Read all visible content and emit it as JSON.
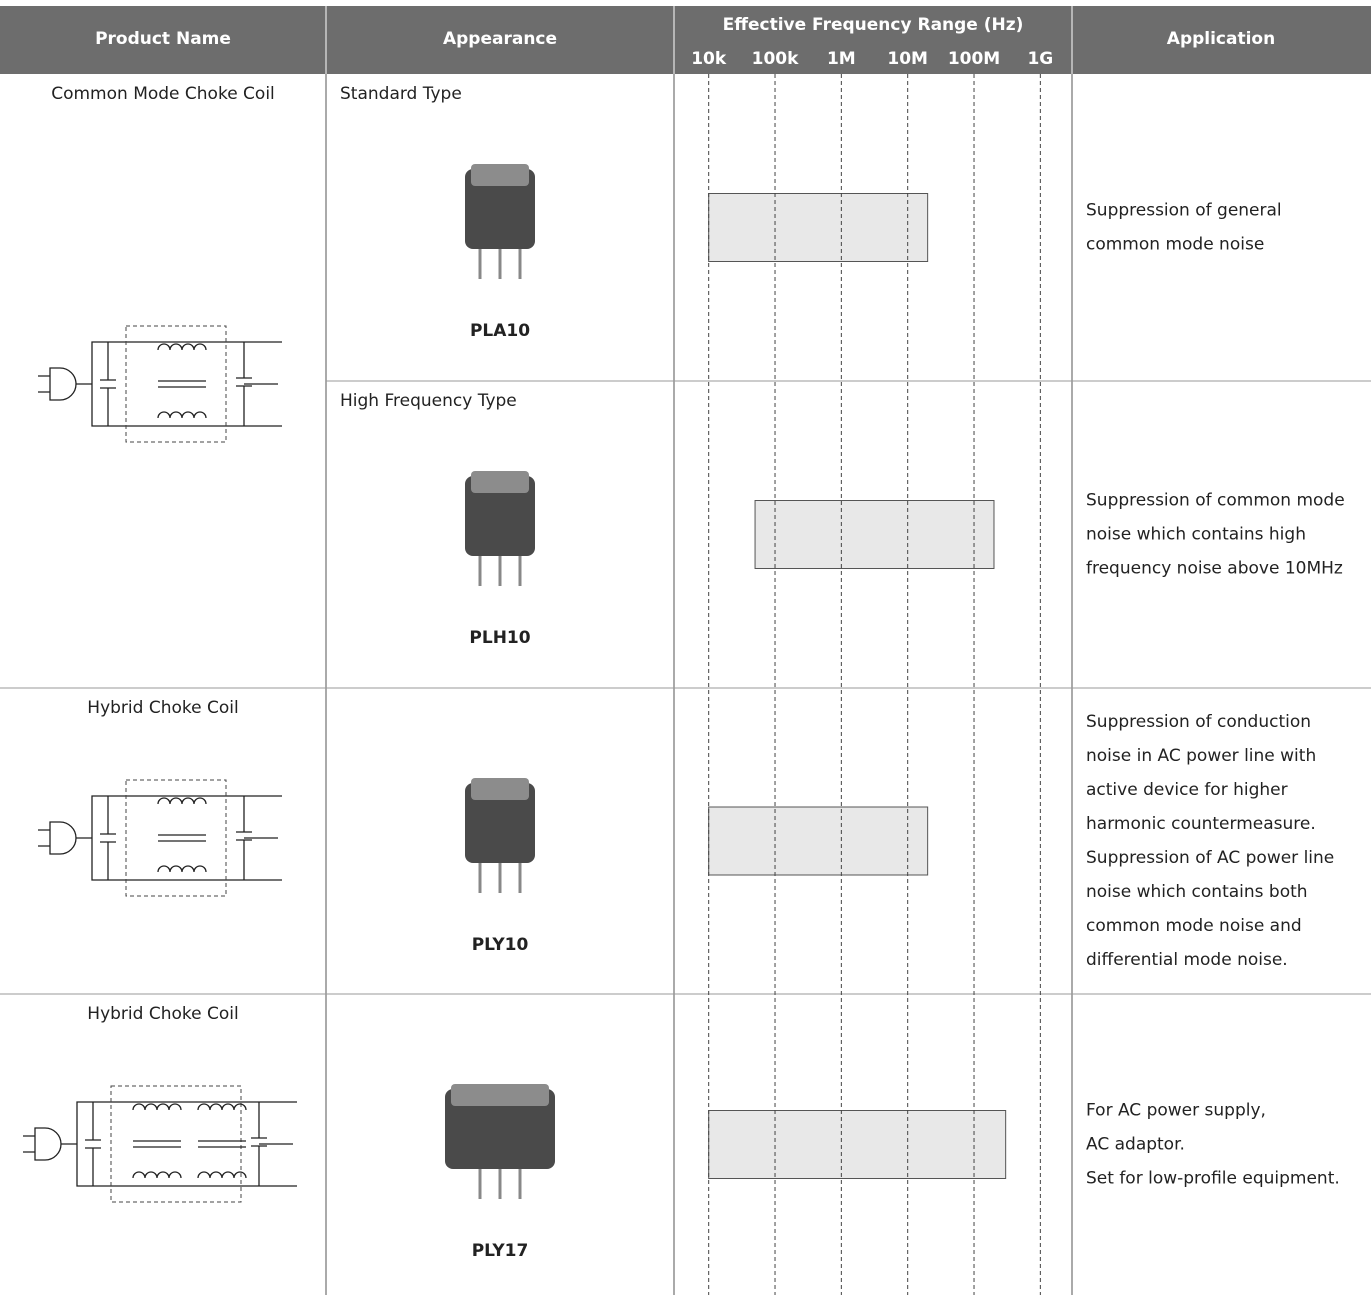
{
  "table": {
    "headers": {
      "product": "Product Name",
      "appearance": "Appearance",
      "frequency": "Effective Frequency Range (Hz)",
      "application": "Application"
    },
    "frequency_axis": {
      "scale": "log",
      "xlim": [
        3000,
        3000000000
      ],
      "xticks": [
        {
          "value": 10000,
          "label": "10k"
        },
        {
          "value": 100000,
          "label": "100k"
        },
        {
          "value": 1000000,
          "label": "1M"
        },
        {
          "value": 10000000,
          "label": "10M"
        },
        {
          "value": 100000000,
          "label": "100M"
        },
        {
          "value": 1000000000,
          "label": "1G"
        }
      ],
      "bar_color": "#e8e8e8"
    },
    "products": [
      {
        "name": "Common Mode Choke Coil",
        "variants": [
          {
            "type": "Standard Type",
            "part": "PLA10",
            "range": [
              10000,
              20000000
            ],
            "application": [
              "Suppression of general",
              "common mode noise"
            ]
          },
          {
            "type": "High Frequency Type",
            "part": "PLH10",
            "range": [
              50000,
              200000000
            ],
            "application": [
              "Suppression of common mode",
              "noise which contains high",
              "frequency noise above 10MHz"
            ]
          }
        ]
      },
      {
        "name": "Hybrid Choke Coil",
        "variants": [
          {
            "part": "PLY10",
            "range": [
              10000,
              20000000
            ],
            "application": [
              "Suppression of conduction",
              "noise in AC power line with",
              "active device for higher",
              "harmonic countermeasure.",
              "Suppression of AC power line",
              "noise which contains both",
              "common mode noise and",
              "differential mode noise."
            ]
          }
        ]
      },
      {
        "name": "Hybrid Choke Coil",
        "variants": [
          {
            "part": "PLY17",
            "range": [
              10000,
              300000000
            ],
            "application": [
              "For AC power supply,",
              "AC adaptor.",
              "Set for low-profile equipment."
            ]
          }
        ]
      }
    ]
  }
}
